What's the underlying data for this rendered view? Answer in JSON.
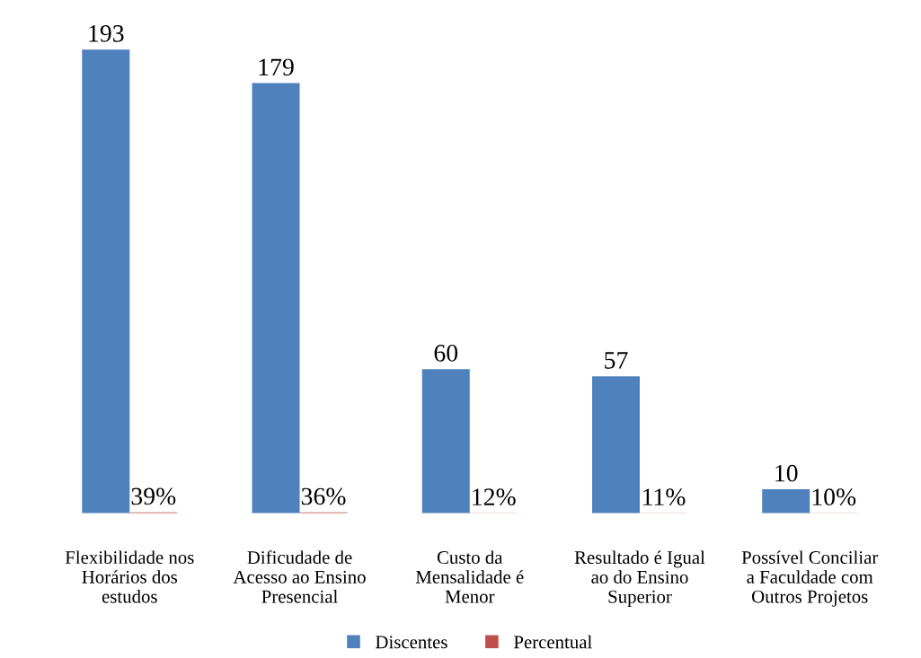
{
  "chart_data": {
    "type": "bar",
    "categories": [
      "Flexibilidade nos\nHorários dos\nestudos",
      "Dificudade de\nAcesso ao Ensino\nPresencial",
      "Custo da\nMensalidade é\nMenor",
      "Resultado é Igual\nao do Ensino\nSuperior",
      "Possível Conciliar\na Faculdade com\nOutros Projetos"
    ],
    "series": [
      {
        "name": "Discentes",
        "color": "#4f81bd",
        "values": [
          193,
          179,
          60,
          57,
          10
        ],
        "value_labels": [
          "193",
          "179",
          "60",
          "57",
          "10"
        ]
      },
      {
        "name": "Percentual",
        "color": "#c0504d",
        "values": [
          0.39,
          0.36,
          0.12,
          0.11,
          0.1
        ],
        "value_labels": [
          "39%",
          "36%",
          "12%",
          "11%",
          "10%"
        ]
      }
    ],
    "legend": "bottom",
    "grid": false
  }
}
